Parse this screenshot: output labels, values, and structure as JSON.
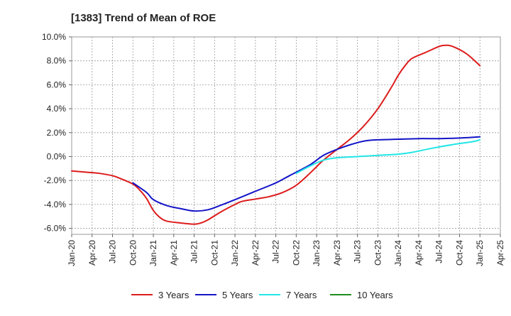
{
  "chart_data": {
    "type": "line",
    "title": "[1383]  Trend of Mean of ROE",
    "xlabel": "",
    "ylabel": "",
    "x_range": [
      "2020-01",
      "2025-04"
    ],
    "ylim": [
      -6.5,
      10.0
    ],
    "y_ticks": [
      "10.0%",
      "8.0%",
      "6.0%",
      "4.0%",
      "2.0%",
      "0.0%",
      "-2.0%",
      "-4.0%",
      "-6.0%"
    ],
    "y_tick_values": [
      10,
      8,
      6,
      4,
      2,
      0,
      -2,
      -4,
      -6
    ],
    "x_ticks": [
      "Jan-20",
      "Apr-20",
      "Jul-20",
      "Oct-20",
      "Jan-21",
      "Apr-21",
      "Jul-21",
      "Oct-21",
      "Jan-22",
      "Apr-22",
      "Jul-22",
      "Oct-22",
      "Jan-23",
      "Apr-23",
      "Jul-23",
      "Oct-23",
      "Jan-24",
      "Apr-24",
      "Jul-24",
      "Oct-24",
      "Jan-25",
      "Apr-25"
    ],
    "x_tick_values": [
      "2020-01",
      "2020-04",
      "2020-07",
      "2020-10",
      "2021-01",
      "2021-04",
      "2021-07",
      "2021-10",
      "2022-01",
      "2022-04",
      "2022-07",
      "2022-10",
      "2023-01",
      "2023-04",
      "2023-07",
      "2023-10",
      "2024-01",
      "2024-04",
      "2024-07",
      "2024-10",
      "2025-01",
      "2025-04"
    ],
    "grid": true,
    "legend_position": "bottom",
    "series": [
      {
        "name": "3 Years",
        "color": "#dd1c1c",
        "points": [
          [
            "2020-01",
            -1.2
          ],
          [
            "2020-03",
            -1.3
          ],
          [
            "2020-05",
            -1.4
          ],
          [
            "2020-07",
            -1.6
          ],
          [
            "2020-08",
            -1.8
          ],
          [
            "2020-10",
            -2.3
          ],
          [
            "2020-11",
            -2.8
          ],
          [
            "2020-12",
            -3.5
          ],
          [
            "2021-01",
            -4.5
          ],
          [
            "2021-02",
            -5.1
          ],
          [
            "2021-03",
            -5.4
          ],
          [
            "2021-05",
            -5.55
          ],
          [
            "2021-07",
            -5.65
          ],
          [
            "2021-08",
            -5.55
          ],
          [
            "2021-09",
            -5.3
          ],
          [
            "2021-11",
            -4.6
          ],
          [
            "2022-01",
            -4.0
          ],
          [
            "2022-02",
            -3.75
          ],
          [
            "2022-04",
            -3.55
          ],
          [
            "2022-06",
            -3.35
          ],
          [
            "2022-08",
            -3.0
          ],
          [
            "2022-10",
            -2.4
          ],
          [
            "2022-12",
            -1.4
          ],
          [
            "2023-02",
            -0.3
          ],
          [
            "2023-04",
            0.6
          ],
          [
            "2023-06",
            1.5
          ],
          [
            "2023-08",
            2.6
          ],
          [
            "2023-10",
            4.0
          ],
          [
            "2023-12",
            5.8
          ],
          [
            "2024-01",
            6.8
          ],
          [
            "2024-02",
            7.6
          ],
          [
            "2024-03",
            8.2
          ],
          [
            "2024-05",
            8.7
          ],
          [
            "2024-07",
            9.2
          ],
          [
            "2024-08",
            9.3
          ],
          [
            "2024-09",
            9.2
          ],
          [
            "2024-11",
            8.6
          ],
          [
            "2025-01",
            7.6
          ]
        ]
      },
      {
        "name": "5 Years",
        "color": "#1414c8",
        "points": [
          [
            "2020-10",
            -2.2
          ],
          [
            "2020-12",
            -3.0
          ],
          [
            "2021-01",
            -3.6
          ],
          [
            "2021-03",
            -4.1
          ],
          [
            "2021-05",
            -4.35
          ],
          [
            "2021-07",
            -4.55
          ],
          [
            "2021-09",
            -4.45
          ],
          [
            "2021-11",
            -4.05
          ],
          [
            "2022-01",
            -3.6
          ],
          [
            "2022-04",
            -2.9
          ],
          [
            "2022-07",
            -2.2
          ],
          [
            "2022-09",
            -1.6
          ],
          [
            "2022-12",
            -0.7
          ],
          [
            "2023-02",
            0.1
          ],
          [
            "2023-04",
            0.6
          ],
          [
            "2023-06",
            1.0
          ],
          [
            "2023-08",
            1.3
          ],
          [
            "2023-10",
            1.4
          ],
          [
            "2024-01",
            1.45
          ],
          [
            "2024-04",
            1.5
          ],
          [
            "2024-07",
            1.5
          ],
          [
            "2024-10",
            1.55
          ],
          [
            "2025-01",
            1.65
          ]
        ]
      },
      {
        "name": "7 Years",
        "color": "#22e6e6",
        "points": [
          [
            "2022-10",
            -1.4
          ],
          [
            "2022-12",
            -0.8
          ],
          [
            "2023-02",
            -0.3
          ],
          [
            "2023-04",
            -0.1
          ],
          [
            "2023-07",
            0.0
          ],
          [
            "2023-10",
            0.1
          ],
          [
            "2024-01",
            0.2
          ],
          [
            "2024-03",
            0.35
          ],
          [
            "2024-06",
            0.7
          ],
          [
            "2024-09",
            1.0
          ],
          [
            "2024-12",
            1.25
          ],
          [
            "2025-01",
            1.4
          ]
        ]
      },
      {
        "name": "10 Years",
        "color": "#1e8c1e",
        "points": []
      }
    ]
  }
}
